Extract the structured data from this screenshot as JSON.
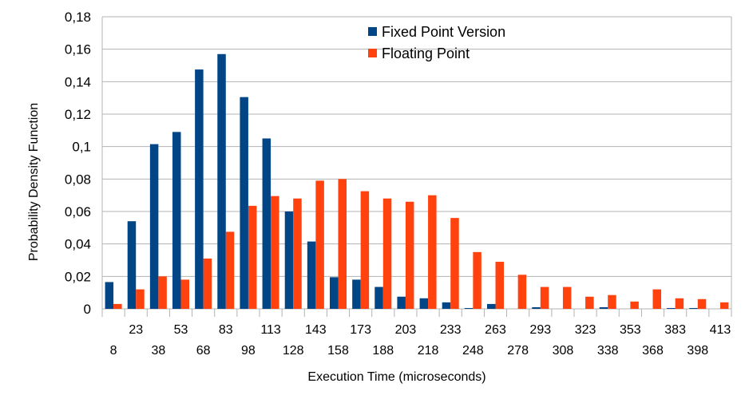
{
  "chart_data": {
    "type": "bar",
    "title": "",
    "xlabel": "Execution Time (microseconds)",
    "ylabel": "Probability Density Function",
    "ylim": [
      0,
      0.18
    ],
    "ytick_labels": [
      "0",
      "0,02",
      "0,04",
      "0,06",
      "0,08",
      "0,1",
      "0,12",
      "0,14",
      "0,16",
      "0,18"
    ],
    "grid": "horizontal",
    "legend_position": "top-center",
    "categories": [
      "8",
      "23",
      "38",
      "53",
      "68",
      "83",
      "98",
      "113",
      "128",
      "143",
      "158",
      "173",
      "188",
      "203",
      "218",
      "233",
      "248",
      "263",
      "278",
      "293",
      "308",
      "323",
      "338",
      "353",
      "368",
      "383",
      "398",
      "413"
    ],
    "series": [
      {
        "name": "Fixed Point Version",
        "color": "#004586",
        "values": [
          0.0165,
          0.054,
          0.1015,
          0.109,
          0.1475,
          0.157,
          0.1305,
          0.105,
          0.06,
          0.0415,
          0.0195,
          0.018,
          0.0135,
          0.0075,
          0.0065,
          0.004,
          0.0005,
          0.003,
          0,
          0.001,
          0,
          0,
          0.001,
          0,
          0,
          0.0005,
          0.0005,
          0
        ]
      },
      {
        "name": "Floating Point",
        "color": "#ff420e",
        "values": [
          0.003,
          0.012,
          0.02,
          0.018,
          0.031,
          0.0475,
          0.0635,
          0.0695,
          0.068,
          0.079,
          0.08,
          0.0725,
          0.068,
          0.066,
          0.07,
          0.056,
          0.035,
          0.029,
          0.021,
          0.0135,
          0.0135,
          0.0075,
          0.0085,
          0.0045,
          0.012,
          0.0065,
          0.006,
          0.004
        ]
      }
    ]
  }
}
